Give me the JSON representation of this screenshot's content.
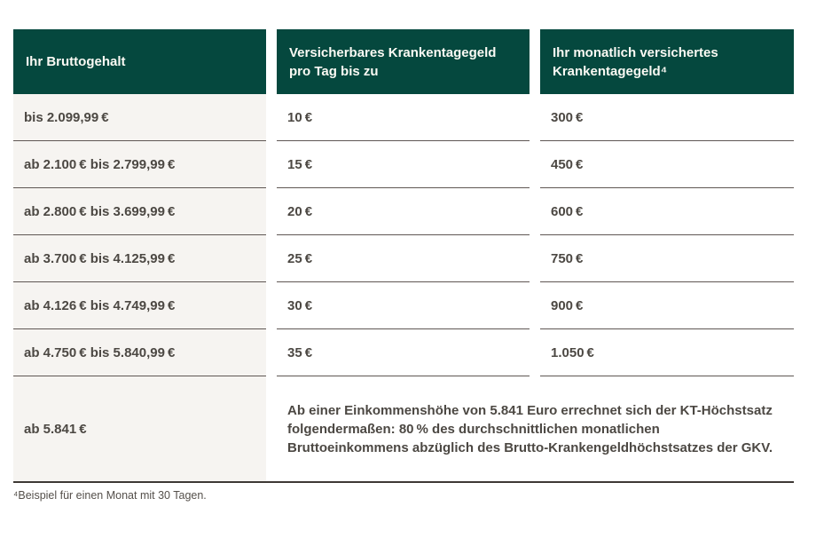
{
  "table": {
    "headers": [
      "Ihr Bruttogehalt",
      "Versicherbares Krankentagegeld pro Tag bis zu",
      "Ihr monatlich versichertes Krankentagegeld⁴"
    ],
    "rows": [
      {
        "gehalt": "bis 2.099,99 €",
        "pro_tag": "10 €",
        "monatlich": "300 €"
      },
      {
        "gehalt": "ab 2.100 € bis 2.799,99 €",
        "pro_tag": "15 €",
        "monatlich": "450 €"
      },
      {
        "gehalt": "ab 2.800 € bis 3.699,99 €",
        "pro_tag": "20 €",
        "monatlich": "600 €"
      },
      {
        "gehalt": "ab 3.700 € bis 4.125,99 €",
        "pro_tag": "25 €",
        "monatlich": "750 €"
      },
      {
        "gehalt": "ab 4.126 € bis 4.749,99 €",
        "pro_tag": "30 €",
        "monatlich": "900 €"
      },
      {
        "gehalt": "ab 4.750 € bis 5.840,99 €",
        "pro_tag": "35 €",
        "monatlich": "1.050 €"
      }
    ],
    "last_row": {
      "gehalt": "ab 5.841 €",
      "note": "Ab einer Einkommenshöhe von 5.841 Euro errechnet sich der KT-Höchstsatz folgendermaßen: 80 % des durchschnittlichen monatlichen Bruttoeinkommens abzüglich des Brutto-Krankengeldhöchstsatzes der GKV."
    },
    "footnote": "⁴Beispiel für einen Monat mit 30 Tagen."
  },
  "colors": {
    "header_bg": "#05483E",
    "header_text": "#FBFAF4",
    "col1_bg": "#F6F4F1",
    "body_text": "#4C4843",
    "divider": "#5F5754",
    "bottom_border": "#3E3935",
    "footnote_text": "#55504B"
  }
}
